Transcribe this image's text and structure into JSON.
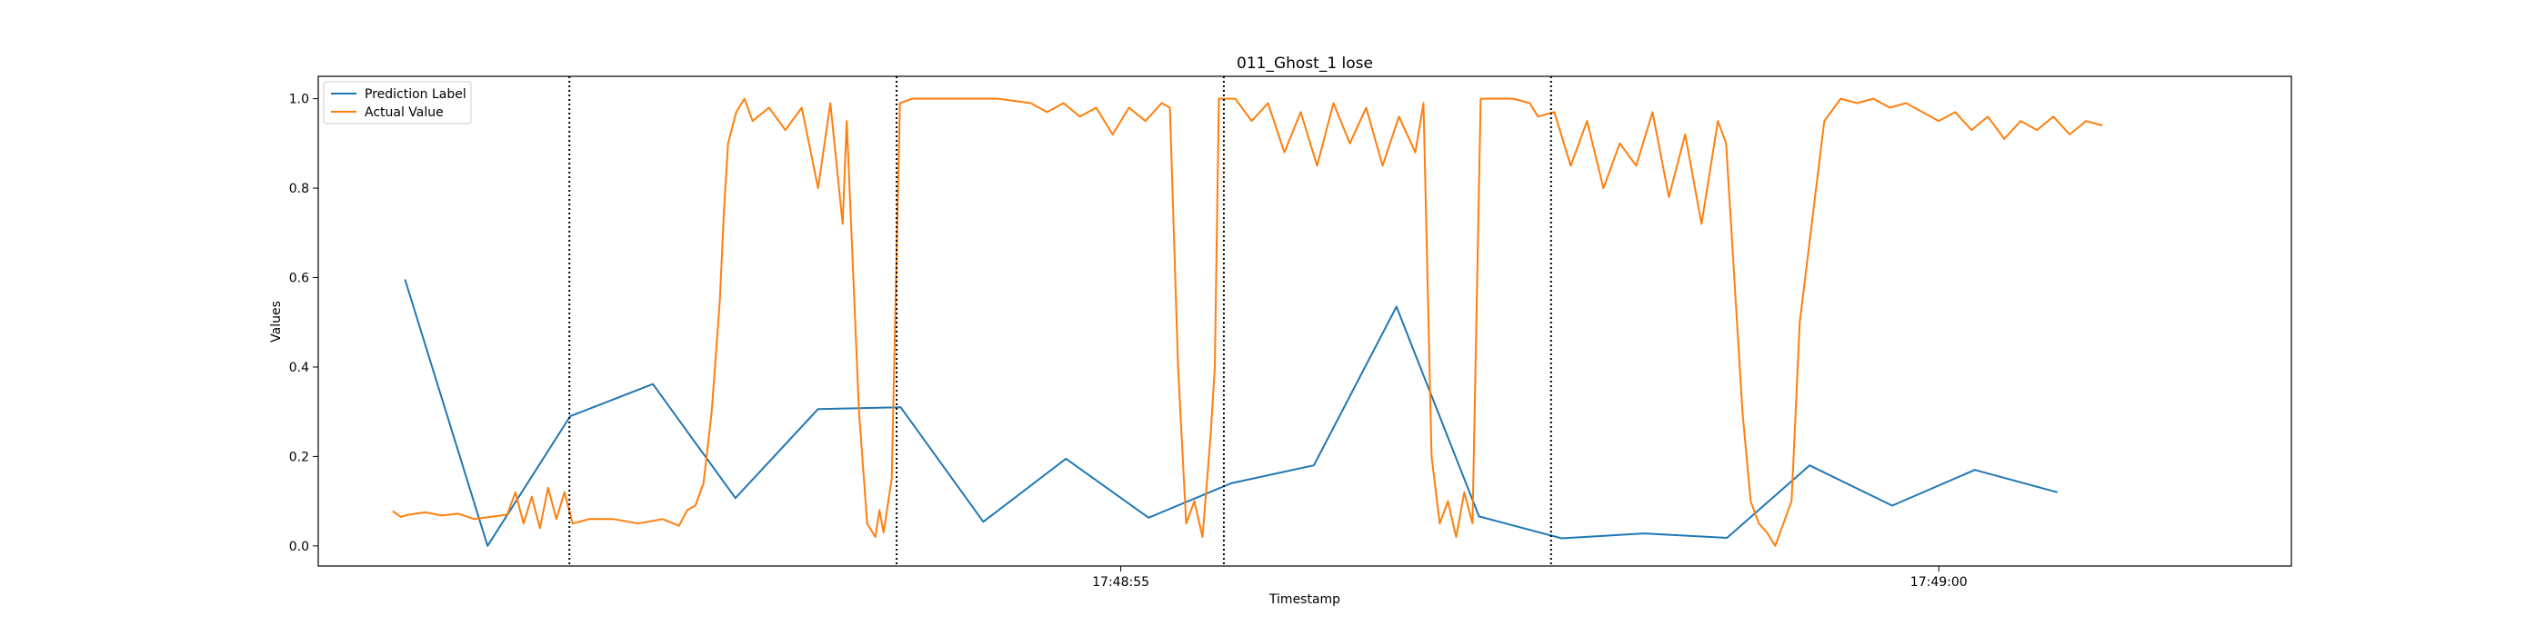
{
  "chart_data": {
    "type": "line",
    "title": "011_Ghost_1 lose",
    "xlabel": "Timestamp",
    "ylabel": "Values",
    "ylim": [
      -0.045,
      1.05
    ],
    "xlim_seconds": [
      -4.81,
      19.31
    ],
    "x_axis_format": "time",
    "x_ticks": [
      {
        "t": 5,
        "label": "17:48:55"
      },
      {
        "t": 15,
        "label": "17:49:00"
      }
    ],
    "y_ticks": [
      {
        "value": 0.0,
        "label": "0.0"
      },
      {
        "value": 0.2,
        "label": "0.2"
      },
      {
        "value": 0.4,
        "label": "0.4"
      },
      {
        "value": 0.6,
        "label": "0.6"
      },
      {
        "value": 0.8,
        "label": "0.8"
      },
      {
        "value": 1.0,
        "label": "1.0"
      }
    ],
    "vlines_seconds": [
      -1.74,
      2.26,
      6.26,
      10.26
    ],
    "vline_style": "dotted",
    "grid": false,
    "legend_position": "top-left",
    "series": [
      {
        "name": "Prediction Label",
        "color": "#1f77b4",
        "points": [
          [
            -3.75,
            0.596
          ],
          [
            -2.74,
            0.0
          ],
          [
            -1.73,
            0.29
          ],
          [
            -0.72,
            0.362
          ],
          [
            0.29,
            0.107
          ],
          [
            1.3,
            0.306
          ],
          [
            2.31,
            0.31
          ],
          [
            3.32,
            0.054
          ],
          [
            4.33,
            0.195
          ],
          [
            5.34,
            0.063
          ],
          [
            6.35,
            0.14
          ],
          [
            7.36,
            0.18
          ],
          [
            8.37,
            0.535
          ],
          [
            9.38,
            0.066
          ],
          [
            10.39,
            0.017
          ],
          [
            11.4,
            0.028
          ],
          [
            12.41,
            0.018
          ],
          [
            13.42,
            0.18
          ],
          [
            14.43,
            0.09
          ],
          [
            15.44,
            0.17
          ],
          [
            16.45,
            0.12
          ]
        ]
      },
      {
        "name": "Actual Value",
        "color": "#ff7f0e",
        "points": [
          [
            -3.9,
            0.078
          ],
          [
            -3.8,
            0.065
          ],
          [
            -3.7,
            0.07
          ],
          [
            -3.5,
            0.075
          ],
          [
            -3.3,
            0.068
          ],
          [
            -3.1,
            0.072
          ],
          [
            -2.9,
            0.06
          ],
          [
            -2.7,
            0.065
          ],
          [
            -2.5,
            0.07
          ],
          [
            -2.4,
            0.12
          ],
          [
            -2.3,
            0.05
          ],
          [
            -2.2,
            0.11
          ],
          [
            -2.1,
            0.04
          ],
          [
            -2.0,
            0.13
          ],
          [
            -1.9,
            0.06
          ],
          [
            -1.8,
            0.12
          ],
          [
            -1.7,
            0.05
          ],
          [
            -1.5,
            0.06
          ],
          [
            -1.2,
            0.06
          ],
          [
            -0.9,
            0.05
          ],
          [
            -0.6,
            0.06
          ],
          [
            -0.4,
            0.045
          ],
          [
            -0.3,
            0.08
          ],
          [
            -0.2,
            0.09
          ],
          [
            -0.1,
            0.14
          ],
          [
            0.0,
            0.3
          ],
          [
            0.1,
            0.55
          ],
          [
            0.15,
            0.75
          ],
          [
            0.2,
            0.9
          ],
          [
            0.3,
            0.97
          ],
          [
            0.4,
            1.0
          ],
          [
            0.5,
            0.95
          ],
          [
            0.7,
            0.98
          ],
          [
            0.9,
            0.93
          ],
          [
            1.1,
            0.98
          ],
          [
            1.3,
            0.8
          ],
          [
            1.45,
            0.99
          ],
          [
            1.6,
            0.72
          ],
          [
            1.65,
            0.95
          ],
          [
            1.8,
            0.3
          ],
          [
            1.9,
            0.05
          ],
          [
            2.0,
            0.02
          ],
          [
            2.05,
            0.08
          ],
          [
            2.1,
            0.03
          ],
          [
            2.2,
            0.15
          ],
          [
            2.3,
            0.99
          ],
          [
            2.45,
            1.0
          ],
          [
            3.0,
            1.0
          ],
          [
            3.5,
            1.0
          ],
          [
            3.9,
            0.99
          ],
          [
            4.1,
            0.97
          ],
          [
            4.3,
            0.99
          ],
          [
            4.5,
            0.96
          ],
          [
            4.7,
            0.98
          ],
          [
            4.9,
            0.92
          ],
          [
            5.1,
            0.98
          ],
          [
            5.3,
            0.95
          ],
          [
            5.5,
            0.99
          ],
          [
            5.6,
            0.98
          ],
          [
            5.7,
            0.4
          ],
          [
            5.8,
            0.05
          ],
          [
            5.9,
            0.1
          ],
          [
            6.0,
            0.02
          ],
          [
            6.1,
            0.25
          ],
          [
            6.15,
            0.4
          ],
          [
            6.2,
            1.0
          ],
          [
            6.4,
            1.0
          ],
          [
            6.6,
            0.95
          ],
          [
            6.8,
            0.99
          ],
          [
            7.0,
            0.88
          ],
          [
            7.2,
            0.97
          ],
          [
            7.4,
            0.85
          ],
          [
            7.6,
            0.99
          ],
          [
            7.8,
            0.9
          ],
          [
            8.0,
            0.98
          ],
          [
            8.2,
            0.85
          ],
          [
            8.4,
            0.96
          ],
          [
            8.6,
            0.88
          ],
          [
            8.7,
            0.99
          ],
          [
            8.8,
            0.2
          ],
          [
            8.9,
            0.05
          ],
          [
            9.0,
            0.1
          ],
          [
            9.1,
            0.02
          ],
          [
            9.2,
            0.12
          ],
          [
            9.3,
            0.05
          ],
          [
            9.4,
            1.0
          ],
          [
            9.6,
            1.0
          ],
          [
            9.8,
            1.0
          ],
          [
            10.0,
            0.99
          ],
          [
            10.1,
            0.96
          ],
          [
            10.3,
            0.97
          ],
          [
            10.5,
            0.85
          ],
          [
            10.7,
            0.95
          ],
          [
            10.9,
            0.8
          ],
          [
            11.1,
            0.9
          ],
          [
            11.3,
            0.85
          ],
          [
            11.5,
            0.97
          ],
          [
            11.7,
            0.78
          ],
          [
            11.9,
            0.92
          ],
          [
            12.1,
            0.72
          ],
          [
            12.3,
            0.95
          ],
          [
            12.4,
            0.9
          ],
          [
            12.5,
            0.6
          ],
          [
            12.6,
            0.3
          ],
          [
            12.7,
            0.1
          ],
          [
            12.8,
            0.05
          ],
          [
            12.9,
            0.03
          ],
          [
            13.0,
            0.0
          ],
          [
            13.1,
            0.05
          ],
          [
            13.2,
            0.1
          ],
          [
            13.3,
            0.5
          ],
          [
            13.4,
            0.65
          ],
          [
            13.6,
            0.95
          ],
          [
            13.8,
            1.0
          ],
          [
            14.0,
            0.99
          ],
          [
            14.2,
            1.0
          ],
          [
            14.4,
            0.98
          ],
          [
            14.6,
            0.99
          ],
          [
            14.8,
            0.97
          ],
          [
            15.0,
            0.95
          ],
          [
            15.2,
            0.97
          ],
          [
            15.4,
            0.93
          ],
          [
            15.6,
            0.96
          ],
          [
            15.8,
            0.91
          ],
          [
            16.0,
            0.95
          ],
          [
            16.2,
            0.93
          ],
          [
            16.4,
            0.96
          ],
          [
            16.6,
            0.92
          ],
          [
            16.8,
            0.95
          ],
          [
            17.0,
            0.94
          ]
        ]
      }
    ]
  }
}
